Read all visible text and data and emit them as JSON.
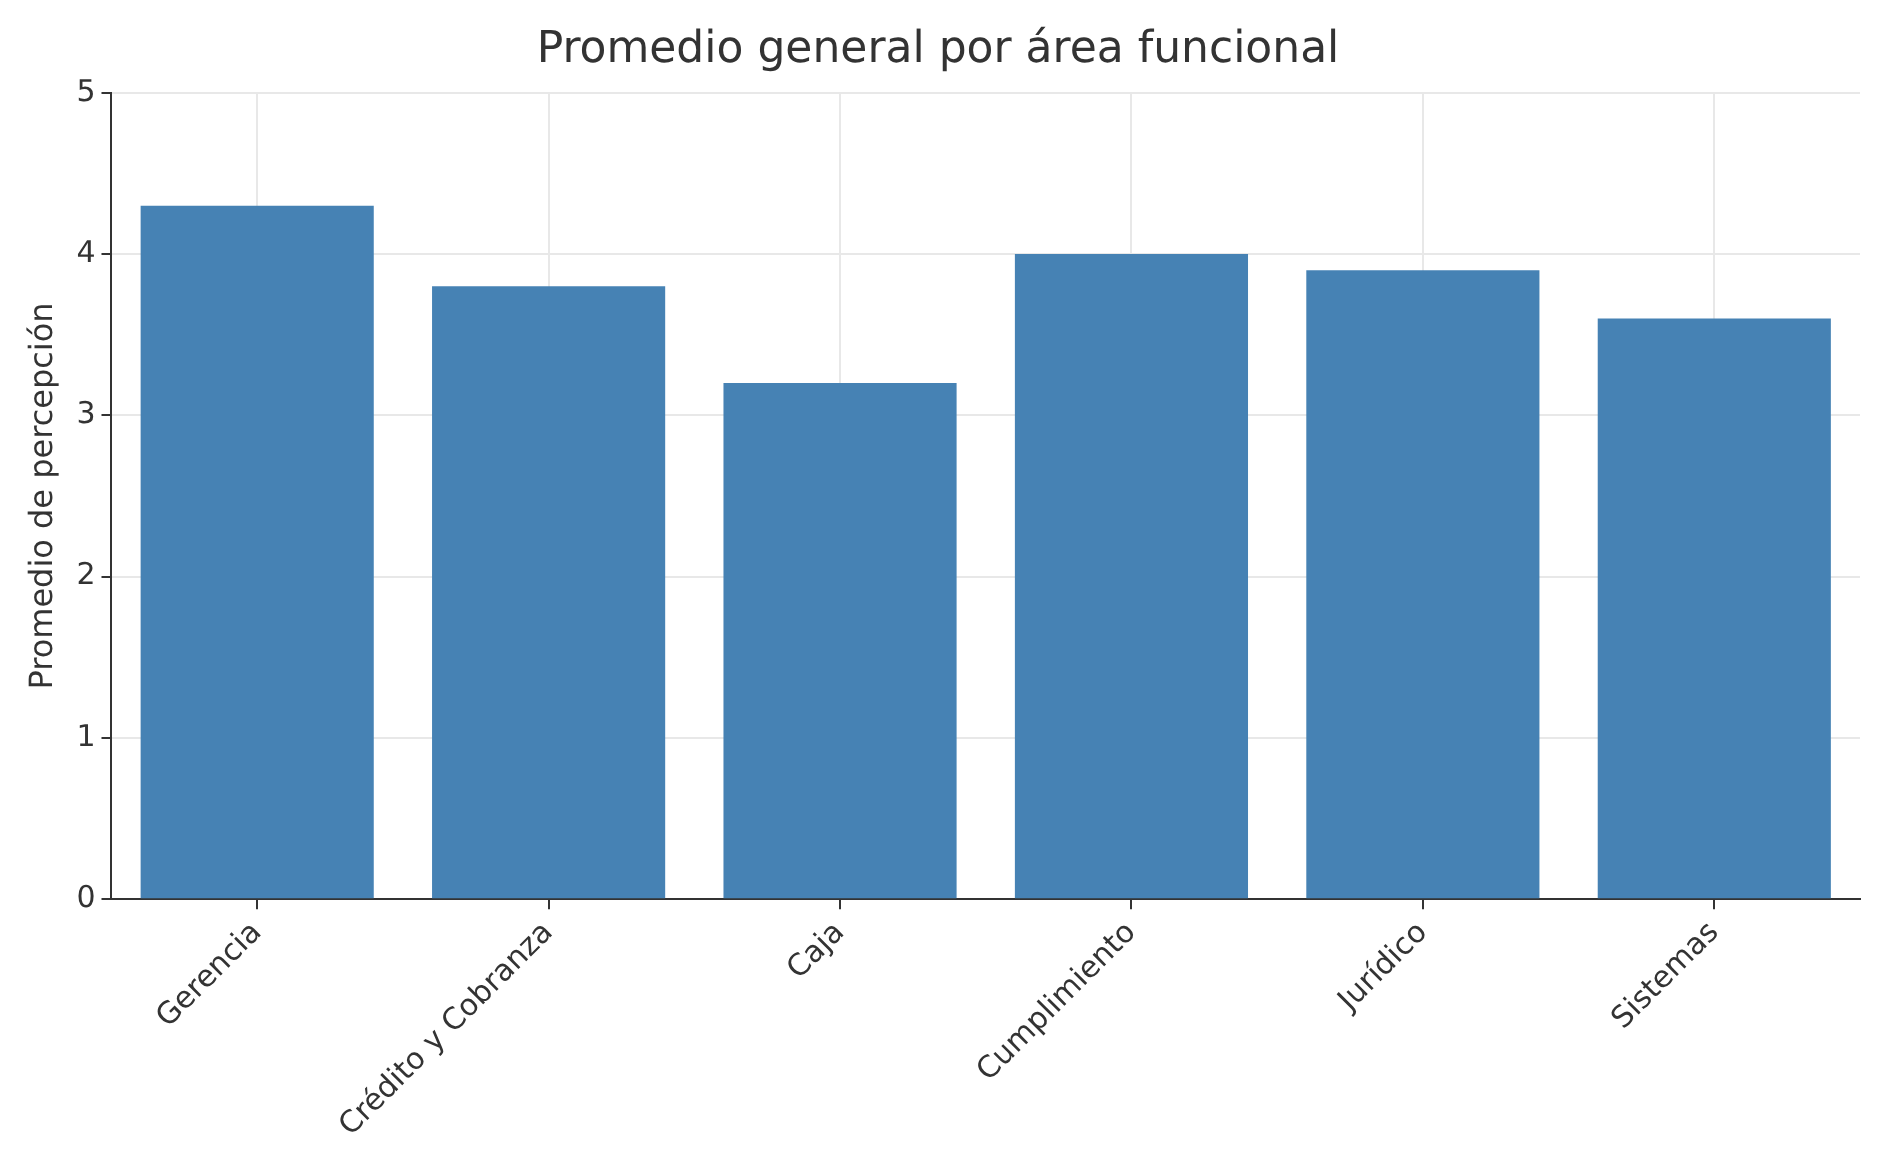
{
  "chart_data": {
    "type": "bar",
    "title": "Promedio general por área funcional",
    "ylabel": "Promedio de percepción",
    "categories": [
      "Gerencia",
      "Crédito y Cobranza",
      "Caja",
      "Cumplimiento",
      "Jurídico",
      "Sistemas"
    ],
    "values": [
      4.3,
      3.8,
      3.2,
      4.0,
      3.9,
      3.6
    ],
    "color": "#4682b4",
    "ylim": [
      0,
      5
    ],
    "yticks": [
      0,
      1,
      2,
      3,
      4,
      5
    ],
    "grid": true
  }
}
